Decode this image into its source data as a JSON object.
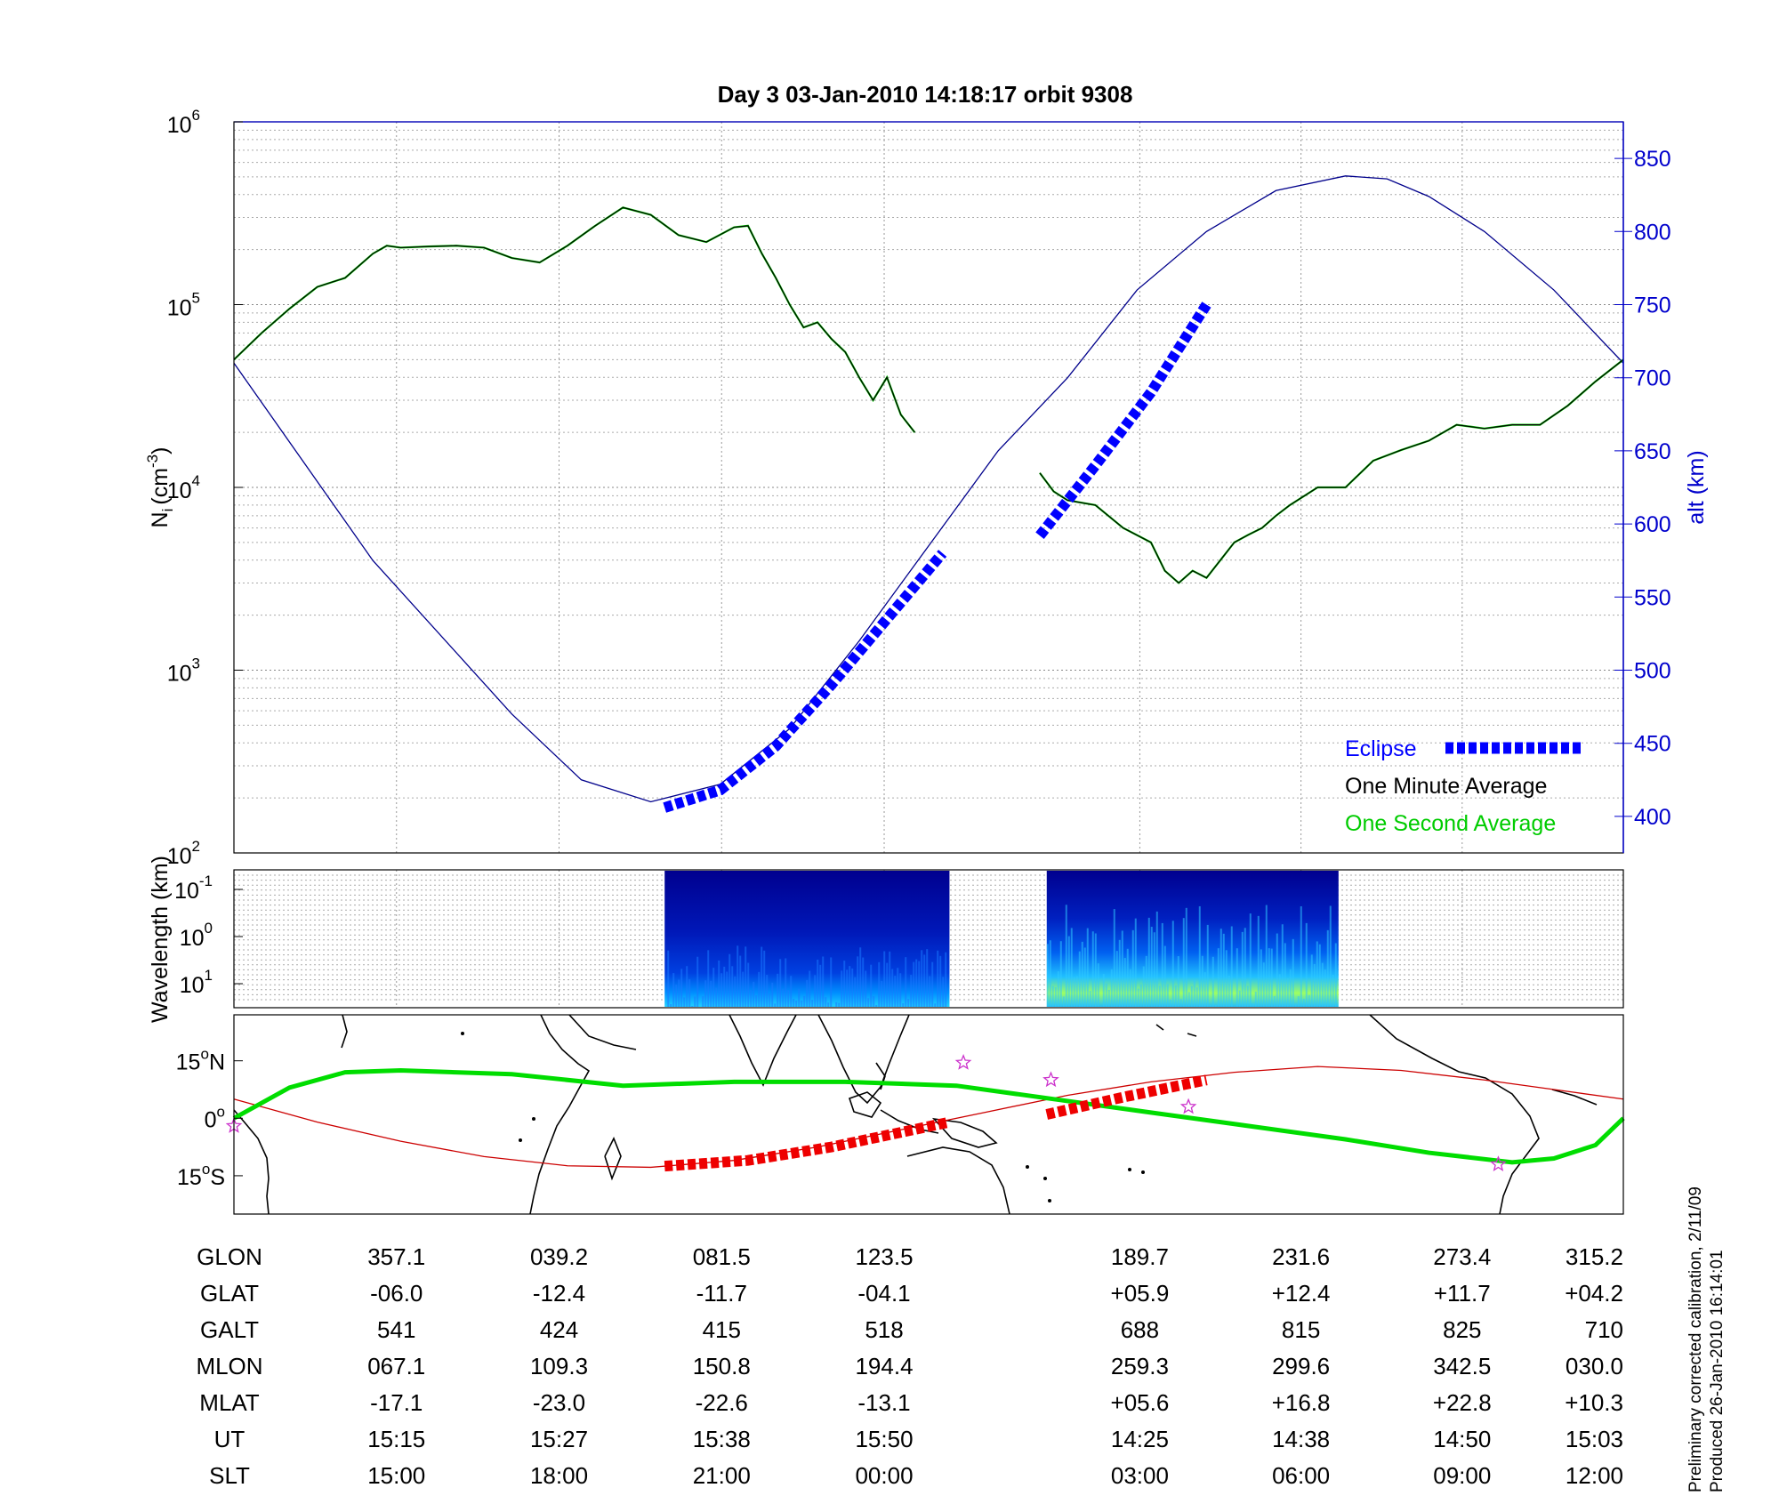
{
  "chart_data": [
    {
      "type": "line",
      "title": "Day 3  03-Jan-2010 14:18:17   orbit 9308",
      "ylabel": "N",
      "ylabel_sub": "i",
      "ylabel_units": "(cm",
      "ylabel_exp": "-3",
      "ylabel_close": ")",
      "y_scale": "log",
      "ylim": [
        100,
        1000000
      ],
      "y_tick_base": "10",
      "y_ticks": [
        {
          "value": 100,
          "exp": "2"
        },
        {
          "value": 1000,
          "exp": "3"
        },
        {
          "value": 10000,
          "exp": "4"
        },
        {
          "value": 100000,
          "exp": "5"
        },
        {
          "value": 1000000,
          "exp": "6"
        }
      ],
      "y2label": "alt (km)",
      "y2lim": [
        375,
        875
      ],
      "y2_ticks": [
        400,
        450,
        500,
        550,
        600,
        650,
        700,
        750,
        800,
        850
      ],
      "xlim": [
        0,
        1
      ],
      "grid": true,
      "legend_position": "bottom-right",
      "legend": [
        {
          "label": "Eclipse",
          "color": "#0000ff",
          "marker": "dashed-thick"
        },
        {
          "label": "One Minute Average",
          "color": "#000000"
        },
        {
          "label": "One Second Average",
          "color": "#00cc00"
        }
      ],
      "density_segments": [
        {
          "name": "One Minute Average",
          "x": [
            0,
            0.02,
            0.04,
            0.06,
            0.08,
            0.1,
            0.11,
            0.12,
            0.14,
            0.16,
            0.18,
            0.2,
            0.22,
            0.24,
            0.26,
            0.28,
            0.3,
            0.32,
            0.34,
            0.36,
            0.37,
            0.38,
            0.39,
            0.4,
            0.41,
            0.42,
            0.43,
            0.44,
            0.45,
            0.46,
            0.47,
            0.48,
            0.49,
            0.5,
            0.51
          ],
          "y": [
            50000,
            70000,
            95000,
            125000,
            140000,
            190000,
            210000,
            205000,
            208000,
            210000,
            205000,
            180000,
            170000,
            210000,
            270000,
            340000,
            310000,
            240000,
            220000,
            265000,
            270000,
            190000,
            140000,
            100000,
            75000,
            80000,
            65000,
            55000,
            40000,
            30000,
            40000,
            25000,
            20000,
            null,
            null
          ]
        },
        {
          "name": "One Minute Average (post-gap)",
          "x": [
            0.58,
            0.59,
            0.6,
            0.62,
            0.64,
            0.66,
            0.67,
            0.68,
            0.69,
            0.7,
            0.71,
            0.72,
            0.73,
            0.74,
            0.75,
            0.76,
            0.78,
            0.8,
            0.82,
            0.84,
            0.86,
            0.88,
            0.9,
            0.92,
            0.94,
            0.96,
            0.98,
            1.0
          ],
          "y": [
            12000,
            9500,
            8500,
            8000,
            6000,
            5000,
            3500,
            3000,
            3500,
            3200,
            4000,
            5000,
            5500,
            6000,
            7000,
            8000,
            10000,
            10000,
            14000,
            16000,
            18000,
            22000,
            21000,
            22000,
            22000,
            28000,
            38000,
            50000
          ]
        }
      ],
      "altitude_curve": {
        "name": "alt",
        "color": "#00008b",
        "x": [
          0,
          0.1,
          0.2,
          0.25,
          0.3,
          0.35,
          0.4,
          0.45,
          0.5,
          0.55,
          0.6,
          0.65,
          0.7,
          0.75,
          0.8,
          0.83,
          0.86,
          0.9,
          0.95,
          1.0
        ],
        "y": [
          710,
          575,
          470,
          425,
          410,
          422,
          460,
          520,
          585,
          650,
          700,
          760,
          800,
          828,
          838,
          836,
          824,
          800,
          760,
          710
        ]
      },
      "eclipse_segments": [
        {
          "x": [
            0.31,
            0.35,
            0.39,
            0.43,
            0.47,
            0.51
          ],
          "y": [
            406,
            418,
            448,
            490,
            535,
            580
          ]
        },
        {
          "x": [
            0.58,
            0.62,
            0.66,
            0.7
          ],
          "y": [
            592,
            640,
            690,
            750
          ]
        }
      ]
    },
    {
      "type": "heatmap",
      "ylabel": "Wavelength (km)",
      "y_scale": "log",
      "y_tick_base": "10",
      "y_ticks": [
        {
          "exp": "-1"
        },
        {
          "exp": "0"
        },
        {
          "exp": "1"
        }
      ],
      "xlim": [
        0,
        1
      ],
      "blocks": [
        {
          "x": [
            0.31,
            0.515
          ],
          "intensity": 0.45
        },
        {
          "x": [
            0.585,
            0.795
          ],
          "intensity": 0.75
        }
      ]
    },
    {
      "type": "map",
      "y_ticks": [
        {
          "value": 15,
          "text": "15",
          "deg": "o",
          "hemi": "N"
        },
        {
          "value": 0,
          "text": "0",
          "deg": "o",
          "hemi": ""
        },
        {
          "value": -15,
          "text": "15",
          "deg": "o",
          "hemi": "S"
        }
      ],
      "ylim": [
        -25,
        27
      ],
      "green_track": {
        "color": "#00dd00",
        "x": [
          0,
          0.04,
          0.08,
          0.12,
          0.2,
          0.28,
          0.36,
          0.44,
          0.52,
          0.6,
          0.66,
          0.72,
          0.8,
          0.86,
          0.92,
          0.95,
          0.98,
          1.0
        ],
        "y": [
          0,
          8,
          12,
          12.5,
          11.5,
          8.5,
          9.5,
          9.5,
          8.5,
          4.5,
          1.5,
          -1.5,
          -5.5,
          -9,
          -11.5,
          -10.5,
          -7,
          0
        ]
      },
      "red_track": {
        "color": "#cc0000",
        "x": [
          0,
          0.06,
          0.12,
          0.18,
          0.24,
          0.3,
          0.36,
          0.42,
          0.48,
          0.54,
          0.6,
          0.66,
          0.72,
          0.78,
          0.84,
          0.9,
          0.96,
          1.0
        ],
        "y": [
          5,
          -1,
          -6,
          -10,
          -12.4,
          -12.8,
          -11,
          -7.5,
          -3,
          1.5,
          6,
          9.5,
          12,
          13.5,
          12.5,
          10,
          7,
          5
        ]
      },
      "eclipse_segments": [
        {
          "x": [
            0.31,
            0.37,
            0.43,
            0.515
          ],
          "y": [
            -12.5,
            -11,
            -7.5,
            -1
          ]
        },
        {
          "x": [
            0.585,
            0.64,
            0.7
          ],
          "y": [
            1,
            5.5,
            10
          ]
        }
      ],
      "stars": [
        {
          "x": 0.0,
          "y": -2
        },
        {
          "x": 0.525,
          "y": 14.5
        },
        {
          "x": 0.588,
          "y": 10
        },
        {
          "x": 0.687,
          "y": 3
        },
        {
          "x": 0.91,
          "y": -12
        }
      ]
    }
  ],
  "ephemeris": {
    "rows": [
      {
        "label": "GLON",
        "values": [
          "357.1",
          "039.2",
          "081.5",
          "123.5",
          "189.7",
          "231.6",
          "273.4",
          "315.2"
        ]
      },
      {
        "label": "GLAT",
        "values": [
          "-06.0",
          "-12.4",
          "-11.7",
          "-04.1",
          "+05.9",
          "+12.4",
          "+11.7",
          "+04.2"
        ]
      },
      {
        "label": "GALT",
        "values": [
          "541",
          "424",
          "415",
          "518",
          "688",
          "815",
          "825",
          "710"
        ]
      },
      {
        "label": "MLON",
        "values": [
          "067.1",
          "109.3",
          "150.8",
          "194.4",
          "259.3",
          "299.6",
          "342.5",
          "030.0"
        ]
      },
      {
        "label": "MLAT",
        "values": [
          "-17.1",
          "-23.0",
          "-22.6",
          "-13.1",
          "+05.6",
          "+16.8",
          "+22.8",
          "+10.3"
        ]
      },
      {
        "label": "UT",
        "values": [
          "15:15",
          "15:27",
          "15:38",
          "15:50",
          "14:25",
          "14:38",
          "14:50",
          "15:03"
        ]
      },
      {
        "label": "SLT",
        "values": [
          "15:00",
          "18:00",
          "21:00",
          "00:00",
          "03:00",
          "06:00",
          "09:00",
          "12:00"
        ]
      }
    ],
    "column_x": [
      0.117,
      0.234,
      0.351,
      0.468,
      0.652,
      0.768,
      0.884,
      1.0
    ]
  },
  "footnote": {
    "line1": "Preliminary corrected calibration, 2/11/09",
    "line2": "Produced 26-Jan-2010 16:14:01"
  }
}
